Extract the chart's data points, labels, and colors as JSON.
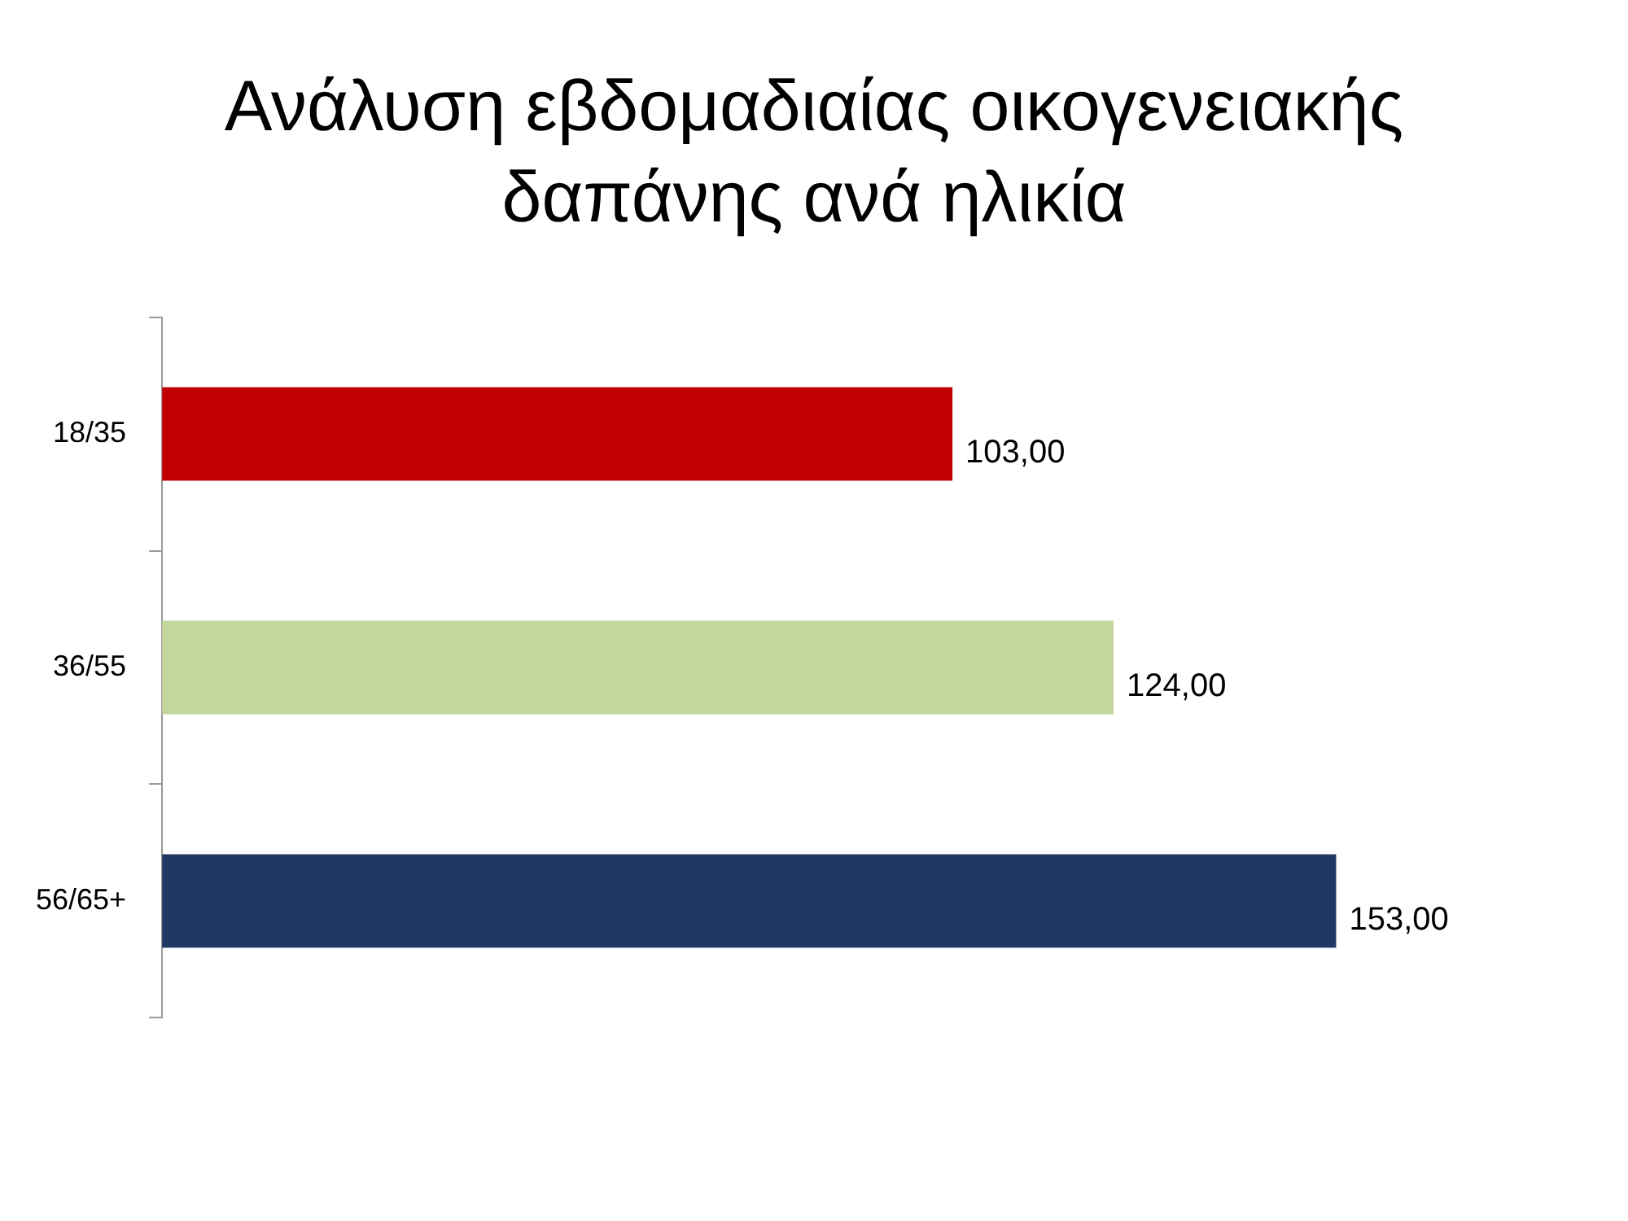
{
  "chart_data": {
    "type": "bar",
    "title": "Ανάλυση εβδομαδιαίας οικογενειακής δαπάνης ανά ηλικία",
    "orientation": "horizontal",
    "categories": [
      "18/35",
      "36/55",
      "56/65+"
    ],
    "values": [
      103,
      124,
      153
    ],
    "colors": [
      "#c00000",
      "#c4d79b",
      "#1f3864"
    ],
    "value_labels": [
      "103,00",
      "124,00",
      "153,00"
    ]
  }
}
